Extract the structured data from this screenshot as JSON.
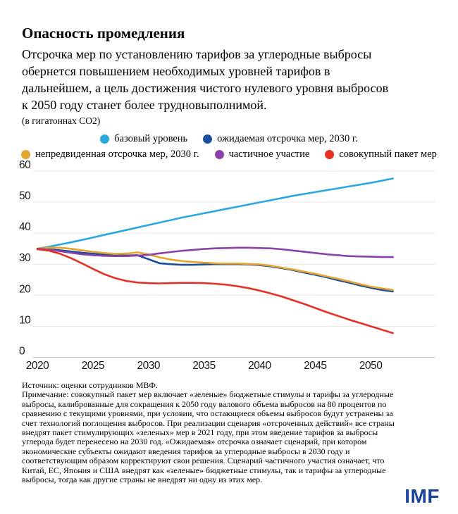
{
  "header": {
    "title": "Опасность промедления",
    "subtitle": "Отсрочка мер по установлению тарифов за углеродные выбросы\nобернется повышением необходимых уровней тарифов в\nдальнейшем, а цель достижения чистого нулевого уровня выбросов\nк 2050 году станет более трудновыполнимой.",
    "units": "(в гигатоннах CO2)"
  },
  "legend": {
    "rows": [
      [
        "baseline",
        "expected_delay_2030"
      ],
      [
        "unexpected_delay_2030",
        "partial_participation",
        "comprehensive_package"
      ]
    ]
  },
  "chart_data": {
    "type": "line",
    "title": "Опасность промедления",
    "ylabel": "гигатонны CO2",
    "xlabel": "",
    "ylim": [
      0,
      60
    ],
    "xlim": [
      2020,
      2052
    ],
    "yticks": [
      0,
      10,
      20,
      30,
      40,
      50,
      60
    ],
    "xticks": [
      2020,
      2025,
      2030,
      2035,
      2040,
      2045,
      2050
    ],
    "grid": "horizontal",
    "legend_position": "top",
    "colors": {
      "grid": "#e7e7e7",
      "axis": "#c9c9c9"
    },
    "x": [
      2020,
      2021,
      2022,
      2023,
      2024,
      2025,
      2026,
      2027,
      2028,
      2029,
      2030,
      2031,
      2032,
      2033,
      2034,
      2035,
      2036,
      2037,
      2038,
      2039,
      2040,
      2041,
      2042,
      2043,
      2044,
      2045,
      2046,
      2047,
      2048,
      2049,
      2050,
      2051,
      2052
    ],
    "series": [
      {
        "id": "baseline",
        "label": "базовый уровень",
        "color": "#29A8E0",
        "values": [
          35.0,
          35.6,
          36.3,
          37.0,
          37.8,
          38.6,
          39.4,
          40.2,
          41.0,
          41.8,
          42.6,
          43.4,
          44.2,
          45.0,
          45.7,
          46.4,
          47.1,
          47.8,
          48.5,
          49.2,
          49.9,
          50.6,
          51.3,
          52.0,
          52.6,
          53.2,
          53.8,
          54.4,
          55.0,
          55.6,
          56.2,
          56.9,
          57.6
        ]
      },
      {
        "id": "expected_delay_2030",
        "label": "ожидаемая отсрочка мер, 2030 г.",
        "color": "#1B4E9B",
        "values": [
          35.0,
          34.8,
          34.5,
          34.1,
          33.7,
          33.4,
          33.1,
          32.9,
          32.8,
          32.9,
          31.6,
          30.3,
          30.0,
          29.8,
          29.8,
          29.9,
          30.0,
          30.0,
          30.0,
          29.9,
          29.7,
          29.3,
          28.7,
          28.1,
          27.3,
          26.6,
          25.8,
          24.9,
          24.1,
          23.2,
          22.4,
          21.7,
          21.2
        ]
      },
      {
        "id": "unexpected_delay_2030",
        "label": "непредвиденная отсрочка мер, 2030 г.",
        "color": "#E5A42C",
        "values": [
          35.0,
          35.3,
          35.3,
          35.0,
          34.5,
          34.0,
          33.6,
          33.3,
          33.4,
          33.8,
          33.2,
          32.2,
          31.5,
          31.0,
          30.7,
          30.5,
          30.3,
          30.2,
          30.2,
          30.1,
          29.9,
          29.5,
          28.9,
          28.3,
          27.6,
          26.9,
          26.1,
          25.3,
          24.5,
          23.6,
          22.8,
          22.2,
          21.7
        ]
      },
      {
        "id": "partial_participation",
        "label": "частичное участие",
        "color": "#8A41A8",
        "values": [
          35.0,
          34.7,
          34.2,
          33.7,
          33.2,
          32.9,
          32.7,
          32.6,
          32.6,
          32.8,
          33.0,
          33.5,
          33.9,
          34.3,
          34.6,
          34.9,
          35.1,
          35.2,
          35.3,
          35.3,
          35.2,
          35.1,
          34.8,
          34.4,
          34.0,
          33.6,
          33.2,
          32.9,
          32.6,
          32.5,
          32.4,
          32.3,
          32.3
        ]
      },
      {
        "id": "comprehensive_package",
        "label": "совокупный пакет мер",
        "color": "#E43125",
        "values": [
          34.8,
          34.4,
          33.4,
          32.0,
          30.3,
          28.5,
          26.8,
          25.5,
          24.6,
          24.1,
          23.9,
          23.8,
          23.9,
          24.0,
          24.0,
          23.9,
          23.7,
          23.4,
          22.9,
          22.3,
          21.5,
          20.6,
          19.6,
          18.4,
          17.2,
          15.9,
          14.6,
          13.4,
          12.2,
          11.1,
          10.0,
          8.9,
          7.8
        ]
      }
    ]
  },
  "footer": {
    "source": "Источник: оценки сотрудников МВФ.",
    "note": "Примечание: совокупный пакет мер включает «зеленые» бюджетные стимулы и тарифы за углеродные\nвыбросы, калиброванные для сокращения к 2050 году валового объема выбросов на 80 процентов по\nсравнению с текущими уровнями, при условии, что остающиеся объемы выбросов будут устранены за\nсчет технологий поглощения выбросов. При реализации сценария «отсроченных действий» все страны\nвнедрят пакет стимулирующих «зеленых» мер в 2021 году, при этом введение тарифов за выбросы\nуглерода будет перенесено на 2030 год. «Ожидаемая» отсрочка означает сценарий, при котором\nэкономические субъекты ожидают введения тарифов за углеродные выбросы в 2030 году и\nсоответствующим образом корректируют свои решения. Сценарий частичного участия означает, что\nКитай, ЕС, Япония и США внедрят как «зеленые» бюджетные стимулы, так и тарифы за углеродные\nвыбросы, тогда как другие страны не внедрят ни одну из этих мер."
  },
  "logo": {
    "text": "IMF"
  }
}
